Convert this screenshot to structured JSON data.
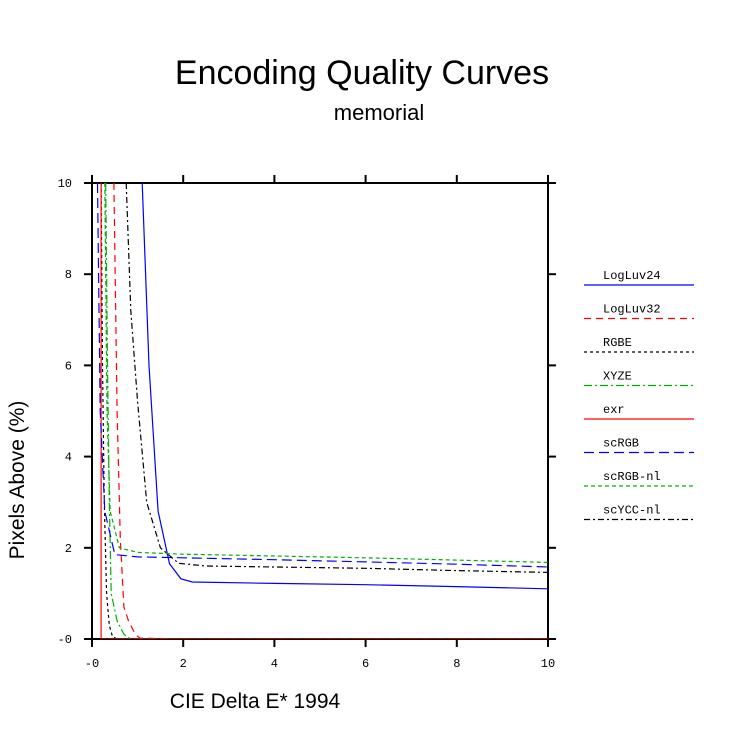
{
  "chart_data": {
    "type": "line",
    "title": "Encoding Quality Curves",
    "subtitle": "memorial",
    "xlabel": "CIE Delta E* 1994",
    "ylabel": "Pixels Above (%)",
    "xlim": [
      0,
      10
    ],
    "ylim": [
      0,
      10
    ],
    "x_ticks": [
      0,
      2,
      4,
      6,
      8,
      10
    ],
    "y_ticks": [
      0,
      2,
      4,
      6,
      8,
      10
    ],
    "x_tick_labels": [
      "-0",
      "2",
      "4",
      "6",
      "8",
      "10"
    ],
    "y_tick_labels": [
      "-0",
      "2",
      "4",
      "6",
      "8",
      "10"
    ],
    "grid": false,
    "legend_position": "right",
    "series": [
      {
        "name": "LogLuv24",
        "color": "#0000ff",
        "dash": "solid",
        "points": [
          [
            1.1,
            10
          ],
          [
            1.25,
            6
          ],
          [
            1.45,
            2.8
          ],
          [
            1.7,
            1.65
          ],
          [
            1.95,
            1.32
          ],
          [
            2.2,
            1.25
          ],
          [
            4,
            1.22
          ],
          [
            6,
            1.19
          ],
          [
            8,
            1.15
          ],
          [
            10,
            1.1
          ]
        ]
      },
      {
        "name": "LogLuv32",
        "color": "#ff0000",
        "dash": "dashed",
        "points": [
          [
            0.48,
            10
          ],
          [
            0.55,
            5
          ],
          [
            0.62,
            2.2
          ],
          [
            0.7,
            0.7
          ],
          [
            0.8,
            0.4
          ],
          [
            0.95,
            0.1
          ],
          [
            1.05,
            0.02
          ],
          [
            2,
            0
          ],
          [
            10,
            0
          ]
        ]
      },
      {
        "name": "RGBE",
        "color": "#000000",
        "dash": "dotted",
        "points": [
          [
            0.2,
            10
          ],
          [
            0.23,
            6
          ],
          [
            0.27,
            3
          ],
          [
            0.32,
            1
          ],
          [
            0.38,
            0.3
          ],
          [
            0.45,
            0.05
          ],
          [
            0.55,
            0
          ],
          [
            10,
            0
          ]
        ]
      },
      {
        "name": "XYZE",
        "color": "#00b000",
        "dash": "dashdot",
        "points": [
          [
            0.3,
            10
          ],
          [
            0.34,
            6
          ],
          [
            0.38,
            3
          ],
          [
            0.42,
            1
          ],
          [
            0.55,
            0.4
          ],
          [
            0.7,
            0.1
          ],
          [
            0.85,
            0
          ],
          [
            10,
            0
          ]
        ]
      },
      {
        "name": "exr",
        "color": "#ff0000",
        "dash": "solid",
        "points": [
          [
            0.2,
            10
          ],
          [
            0.2,
            0
          ],
          [
            10,
            0
          ]
        ]
      },
      {
        "name": "scRGB",
        "color": "#0000ff",
        "dash": "longdash",
        "points": [
          [
            0.12,
            10
          ],
          [
            0.18,
            5
          ],
          [
            0.28,
            2.8
          ],
          [
            0.5,
            1.85
          ],
          [
            1,
            1.8
          ],
          [
            2,
            1.78
          ],
          [
            4,
            1.74
          ],
          [
            6,
            1.69
          ],
          [
            8,
            1.64
          ],
          [
            10,
            1.58
          ]
        ]
      },
      {
        "name": "scRGB-nl",
        "color": "#00b000",
        "dash": "shortdash",
        "points": [
          [
            0.28,
            10
          ],
          [
            0.33,
            5
          ],
          [
            0.4,
            2.8
          ],
          [
            0.6,
            2.0
          ],
          [
            1,
            1.9
          ],
          [
            2,
            1.86
          ],
          [
            4,
            1.82
          ],
          [
            6,
            1.78
          ],
          [
            8,
            1.73
          ],
          [
            10,
            1.68
          ]
        ]
      },
      {
        "name": "scYCC-nl",
        "color": "#000000",
        "dash": "mixed",
        "points": [
          [
            0.75,
            10
          ],
          [
            0.85,
            7.2
          ],
          [
            1,
            5.2
          ],
          [
            1.2,
            3
          ],
          [
            1.5,
            2
          ],
          [
            1.9,
            1.66
          ],
          [
            2.5,
            1.6
          ],
          [
            4,
            1.58
          ],
          [
            6,
            1.55
          ],
          [
            8,
            1.5
          ],
          [
            10,
            1.46
          ]
        ]
      }
    ]
  }
}
